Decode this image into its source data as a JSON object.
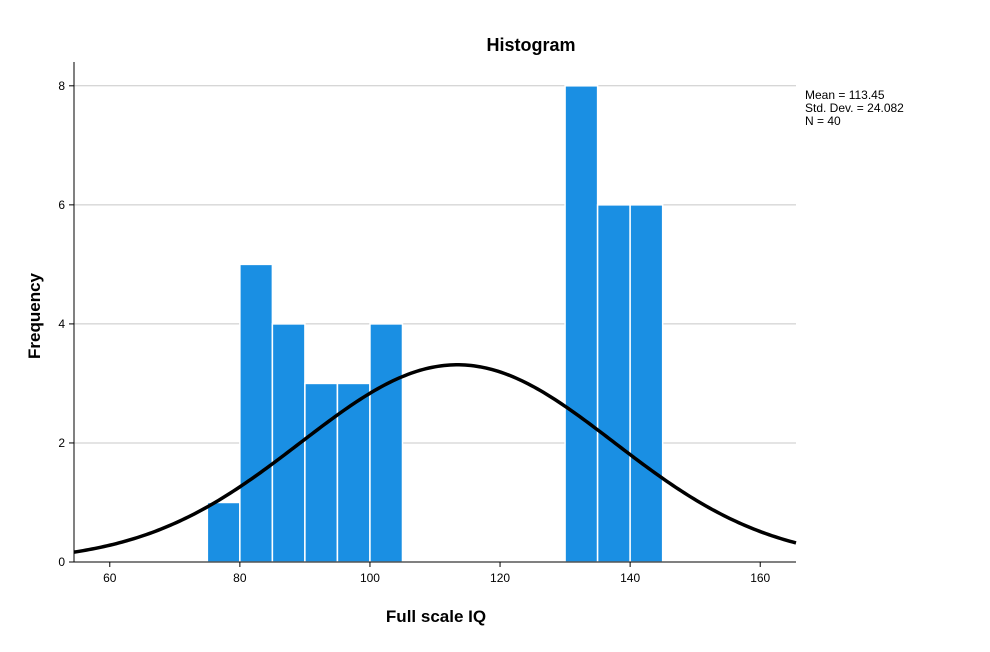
{
  "chart_data": {
    "type": "bar",
    "title": "Histogram",
    "xlabel": "Full scale IQ",
    "ylabel": "Frequency",
    "xlim": [
      54.5,
      165.5
    ],
    "ylim": [
      0,
      8.4
    ],
    "x_ticks": [
      60,
      80,
      100,
      120,
      140,
      160
    ],
    "y_ticks": [
      0,
      2,
      4,
      6,
      8
    ],
    "grid": "horizontal",
    "bins": [
      {
        "start": 75,
        "end": 80,
        "value": 1
      },
      {
        "start": 80,
        "end": 85,
        "value": 5
      },
      {
        "start": 85,
        "end": 90,
        "value": 4
      },
      {
        "start": 90,
        "end": 95,
        "value": 3
      },
      {
        "start": 95,
        "end": 100,
        "value": 3
      },
      {
        "start": 100,
        "end": 105,
        "value": 4
      },
      {
        "start": 130,
        "end": 135,
        "value": 8
      },
      {
        "start": 135,
        "end": 140,
        "value": 6
      },
      {
        "start": 140,
        "end": 145,
        "value": 6
      }
    ],
    "normal_curve": {
      "mean": 113.45,
      "sd": 24.082,
      "n": 40,
      "bin_width": 5
    },
    "stats_box": {
      "mean": "Mean = 113.45",
      "sd": "Std. Dev. = 24.082",
      "n": "N = 40"
    },
    "legend_position": "top-right",
    "colors": {
      "bar": "#1a8fe3",
      "bar_edge": "#ffffff",
      "curve": "#000000",
      "grid": "#c8c8c8",
      "axis": "#000000"
    }
  }
}
